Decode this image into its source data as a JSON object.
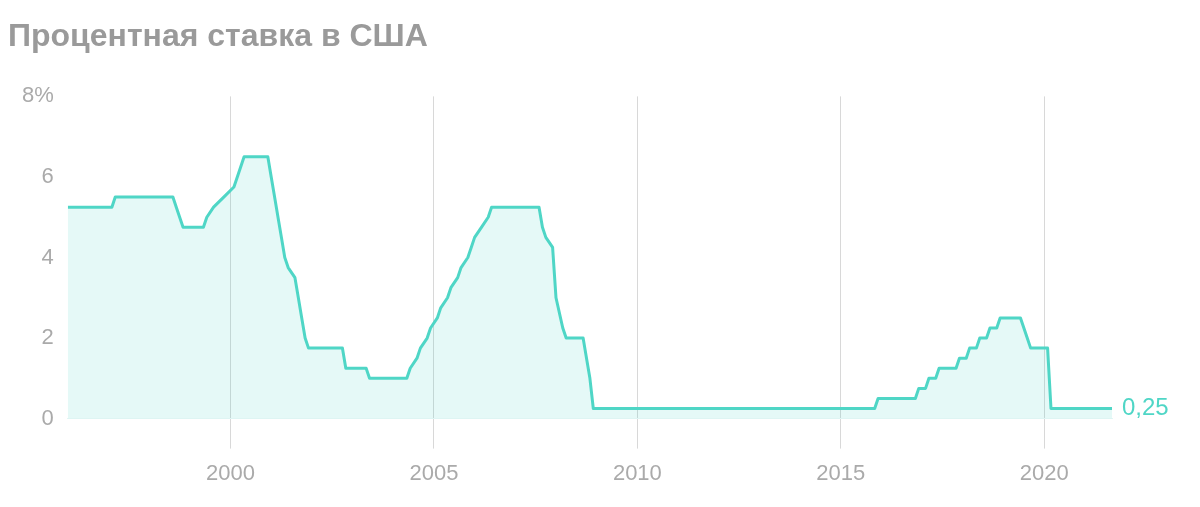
{
  "chart_data": {
    "type": "area",
    "title": "Процентная ставка в США",
    "x": [
      "1996-01",
      "1997-02",
      "1997-03",
      "1998-08",
      "1998-09",
      "1998-11",
      "1999-05",
      "1999-06",
      "1999-08",
      "1999-11",
      "2000-02",
      "2000-03",
      "2000-05",
      "2000-12",
      "2001-01",
      "2001-02",
      "2001-03",
      "2001-04",
      "2001-05",
      "2001-06",
      "2001-08",
      "2001-09",
      "2001-10",
      "2001-11",
      "2001-12",
      "2002-10",
      "2002-11",
      "2003-05",
      "2003-06",
      "2004-05",
      "2004-06",
      "2004-08",
      "2004-09",
      "2004-11",
      "2004-12",
      "2005-02",
      "2005-03",
      "2005-05",
      "2005-06",
      "2005-08",
      "2005-09",
      "2005-11",
      "2005-12",
      "2006-01",
      "2006-03",
      "2006-05",
      "2006-06",
      "2007-08",
      "2007-09",
      "2007-10",
      "2007-12",
      "2008-01",
      "2008-03",
      "2008-04",
      "2008-09",
      "2008-10",
      "2008-11",
      "2008-12",
      "2015-11",
      "2015-12",
      "2016-11",
      "2016-12",
      "2017-02",
      "2017-03",
      "2017-05",
      "2017-06",
      "2017-11",
      "2017-12",
      "2018-02",
      "2018-03",
      "2018-05",
      "2018-06",
      "2018-08",
      "2018-09",
      "2018-11",
      "2018-12",
      "2019-06",
      "2019-07",
      "2019-08",
      "2019-09",
      "2020-02",
      "2020-03",
      "2021-09"
    ],
    "series": [
      {
        "color": "#4fd6c6",
        "values": [
          5.25,
          5.25,
          5.5,
          5.5,
          5.25,
          4.75,
          4.75,
          5.0,
          5.25,
          5.5,
          5.75,
          6.0,
          6.5,
          6.5,
          6.0,
          5.5,
          5.0,
          4.5,
          4.0,
          3.75,
          3.5,
          3.0,
          2.5,
          2.0,
          1.75,
          1.75,
          1.25,
          1.25,
          1.0,
          1.0,
          1.25,
          1.5,
          1.75,
          2.0,
          2.25,
          2.5,
          2.75,
          3.0,
          3.25,
          3.5,
          3.75,
          4.0,
          4.25,
          4.5,
          4.75,
          5.0,
          5.25,
          5.25,
          4.75,
          4.5,
          4.25,
          3.0,
          2.25,
          2.0,
          2.0,
          1.5,
          1.0,
          0.25,
          0.25,
          0.5,
          0.5,
          0.75,
          0.75,
          1.0,
          1.0,
          1.25,
          1.25,
          1.5,
          1.5,
          1.75,
          1.75,
          2.0,
          2.0,
          2.25,
          2.25,
          2.5,
          2.5,
          2.25,
          2.0,
          1.75,
          1.75,
          0.25,
          0.25
        ]
      }
    ],
    "xlim": [
      "1996-01",
      "2021-09"
    ],
    "xticks": [
      "2000",
      "2005",
      "2010",
      "2015",
      "2020"
    ],
    "ylim": [
      0,
      8
    ],
    "yticks": [
      0,
      2,
      4,
      6,
      {
        "value": 8,
        "label": "8%"
      }
    ],
    "grid": "x",
    "annotations": [
      {
        "text": "0,25",
        "x": "2021-09",
        "y": 0.25
      }
    ]
  }
}
